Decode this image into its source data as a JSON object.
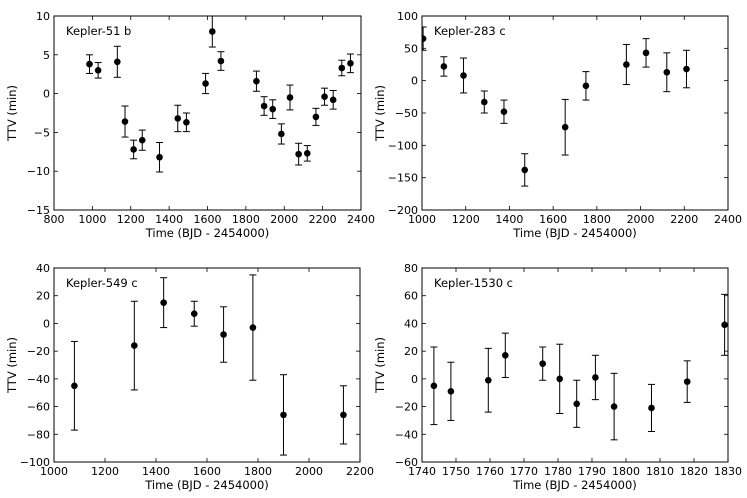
{
  "chart_data": [
    {
      "type": "scatter",
      "title": "Kepler-51 b",
      "xlabel": "Time (BJD - 2454000)",
      "ylabel": "TTV (min)",
      "xlim": [
        800,
        2400
      ],
      "ylim": [
        -15,
        10
      ],
      "xticks": [
        800,
        1000,
        1200,
        1400,
        1600,
        1800,
        2000,
        2200,
        2400
      ],
      "yticks": [
        -15,
        -10,
        -5,
        0,
        5,
        10
      ],
      "xtick_labels": [
        "800",
        "1000",
        "1200",
        "1400",
        "1600",
        "1800",
        "2000",
        "2200",
        "2400"
      ],
      "ytick_labels": [
        "−15",
        "−10",
        "−5",
        "0",
        "5",
        "10"
      ],
      "points": [
        {
          "x": 985,
          "y": 3.8,
          "err": 1.2
        },
        {
          "x": 1030,
          "y": 3.0,
          "err": 1.0
        },
        {
          "x": 1130,
          "y": 4.1,
          "err": 2.0
        },
        {
          "x": 1170,
          "y": -3.6,
          "err": 2.0
        },
        {
          "x": 1215,
          "y": -7.2,
          "err": 1.2
        },
        {
          "x": 1260,
          "y": -6.0,
          "err": 1.3
        },
        {
          "x": 1350,
          "y": -8.2,
          "err": 1.9
        },
        {
          "x": 1445,
          "y": -3.2,
          "err": 1.7
        },
        {
          "x": 1490,
          "y": -3.7,
          "err": 1.2
        },
        {
          "x": 1590,
          "y": 1.3,
          "err": 1.3
        },
        {
          "x": 1625,
          "y": 8.0,
          "err": 2.0
        },
        {
          "x": 1670,
          "y": 4.2,
          "err": 1.2
        },
        {
          "x": 1855,
          "y": 1.6,
          "err": 1.3
        },
        {
          "x": 1895,
          "y": -1.6,
          "err": 1.2
        },
        {
          "x": 1940,
          "y": -2.0,
          "err": 1.2
        },
        {
          "x": 1985,
          "y": -5.2,
          "err": 1.3
        },
        {
          "x": 2030,
          "y": -0.5,
          "err": 1.6
        },
        {
          "x": 2075,
          "y": -7.8,
          "err": 1.4
        },
        {
          "x": 2120,
          "y": -7.7,
          "err": 1.0
        },
        {
          "x": 2165,
          "y": -3.0,
          "err": 1.1
        },
        {
          "x": 2210,
          "y": -0.4,
          "err": 1.1
        },
        {
          "x": 2255,
          "y": -0.8,
          "err": 1.2
        },
        {
          "x": 2300,
          "y": 3.3,
          "err": 1.0
        },
        {
          "x": 2345,
          "y": 3.9,
          "err": 1.2
        }
      ]
    },
    {
      "type": "scatter",
      "title": "Kepler-283 c",
      "xlabel": "Time (BJD - 2454000)",
      "ylabel": "TTV (min)",
      "xlim": [
        1000,
        2400
      ],
      "ylim": [
        -200,
        100
      ],
      "xticks": [
        1000,
        1200,
        1400,
        1600,
        1800,
        2000,
        2200,
        2400
      ],
      "yticks": [
        -200,
        -150,
        -100,
        -50,
        0,
        50,
        100
      ],
      "xtick_labels": [
        "1000",
        "1200",
        "1400",
        "1600",
        "1800",
        "2000",
        "2200",
        "2400"
      ],
      "ytick_labels": [
        "−200",
        "−150",
        "−100",
        "−50",
        "0",
        "50",
        "100"
      ],
      "points": [
        {
          "x": 1005,
          "y": 65,
          "err": 18
        },
        {
          "x": 1100,
          "y": 22,
          "err": 15
        },
        {
          "x": 1190,
          "y": 8,
          "err": 27
        },
        {
          "x": 1285,
          "y": -33,
          "err": 17
        },
        {
          "x": 1375,
          "y": -48,
          "err": 18
        },
        {
          "x": 1470,
          "y": -138,
          "err": 25
        },
        {
          "x": 1655,
          "y": -72,
          "err": 43
        },
        {
          "x": 1750,
          "y": -8,
          "err": 22
        },
        {
          "x": 1935,
          "y": 25,
          "err": 31
        },
        {
          "x": 2025,
          "y": 43,
          "err": 22
        },
        {
          "x": 2120,
          "y": 13,
          "err": 30
        },
        {
          "x": 2210,
          "y": 18,
          "err": 29
        }
      ]
    },
    {
      "type": "scatter",
      "title": "Kepler-549 c",
      "xlabel": "Time (BJD - 2454000)",
      "ylabel": "TTV (min)",
      "xlim": [
        1000,
        2200
      ],
      "ylim": [
        -100,
        40
      ],
      "xticks": [
        1000,
        1200,
        1400,
        1600,
        1800,
        2000,
        2200
      ],
      "yticks": [
        -100,
        -80,
        -60,
        -40,
        -20,
        0,
        20,
        40
      ],
      "xtick_labels": [
        "1000",
        "1200",
        "1400",
        "1600",
        "1800",
        "2000",
        "2200"
      ],
      "ytick_labels": [
        "−100",
        "−80",
        "−60",
        "−40",
        "−20",
        "0",
        "20",
        "40"
      ],
      "points": [
        {
          "x": 1080,
          "y": -45,
          "err": 32
        },
        {
          "x": 1315,
          "y": -16,
          "err": 32
        },
        {
          "x": 1430,
          "y": 15,
          "err": 18
        },
        {
          "x": 1550,
          "y": 7,
          "err": 9
        },
        {
          "x": 1665,
          "y": -8,
          "err": 20
        },
        {
          "x": 1780,
          "y": -3,
          "err": 38
        },
        {
          "x": 1900,
          "y": -66,
          "err": 29
        },
        {
          "x": 2135,
          "y": -66,
          "err": 21
        }
      ]
    },
    {
      "type": "scatter",
      "title": "Kepler-1530 c",
      "xlabel": "Time (BJD - 2454000)",
      "ylabel": "TTV (min)",
      "xlim": [
        1740,
        1830
      ],
      "ylim": [
        -60,
        80
      ],
      "xticks": [
        1740,
        1750,
        1760,
        1770,
        1780,
        1790,
        1800,
        1810,
        1820,
        1830
      ],
      "yticks": [
        -60,
        -40,
        -20,
        0,
        20,
        40,
        60,
        80
      ],
      "xtick_labels": [
        "1740",
        "1750",
        "1760",
        "1770",
        "1780",
        "1790",
        "1800",
        "1810",
        "1820",
        "1830"
      ],
      "ytick_labels": [
        "−60",
        "−40",
        "−20",
        "0",
        "20",
        "40",
        "60",
        "80"
      ],
      "points": [
        {
          "x": 1743.5,
          "y": -5,
          "err": 28
        },
        {
          "x": 1748.5,
          "y": -9,
          "err": 21
        },
        {
          "x": 1759.5,
          "y": -1,
          "err": 23
        },
        {
          "x": 1764.5,
          "y": 17,
          "err": 16
        },
        {
          "x": 1775.5,
          "y": 11,
          "err": 12
        },
        {
          "x": 1780.5,
          "y": 0,
          "err": 25
        },
        {
          "x": 1785.5,
          "y": -18,
          "err": 17
        },
        {
          "x": 1791.0,
          "y": 1,
          "err": 16
        },
        {
          "x": 1796.5,
          "y": -20,
          "err": 24
        },
        {
          "x": 1807.5,
          "y": -21,
          "err": 17
        },
        {
          "x": 1818.0,
          "y": -2,
          "err": 15
        },
        {
          "x": 1829.0,
          "y": 39,
          "err": 22
        }
      ]
    }
  ]
}
